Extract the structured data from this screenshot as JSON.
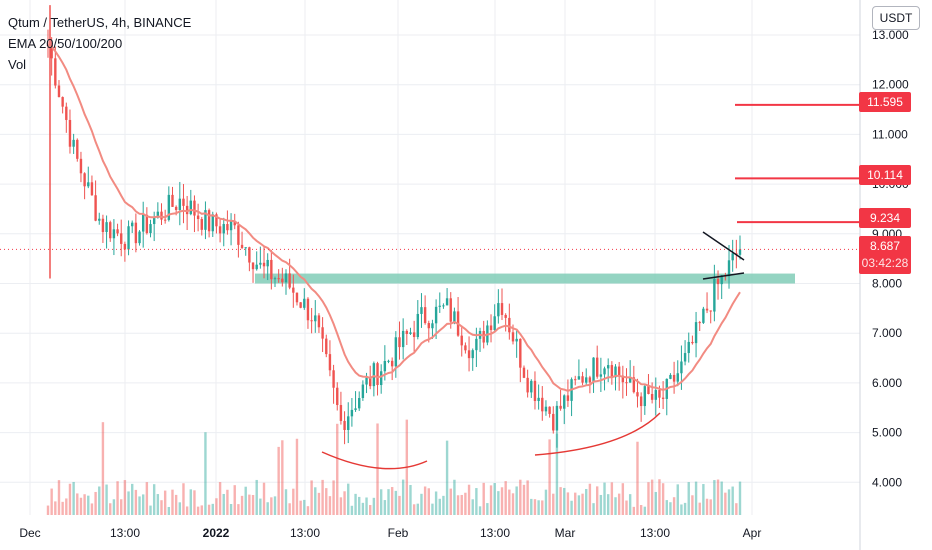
{
  "legend": {
    "symbol": "Qtum / TetherUS, 4h, BINANCE",
    "indicators": "EMA 20/50/100/200",
    "volume": "Vol"
  },
  "currency_button": "USDT",
  "price_tags": [
    {
      "label": "11.595",
      "value": 11.595
    },
    {
      "label": "10.114",
      "value": 10.114
    },
    {
      "label": "9.234",
      "value": 9.234
    }
  ],
  "current": {
    "price": "8.687",
    "value": 8.687,
    "countdown": "03:42:28"
  },
  "colors": {
    "up": "#26a69a",
    "down": "#ef5350",
    "ema": "#f28b82",
    "accent": "#f23645",
    "zone": "#81cdb7"
  },
  "chart_data": {
    "type": "candlestick",
    "title": "Qtum / TetherUS, 4h, BINANCE",
    "ylim": [
      3.4,
      13.6
    ],
    "y_ticks": [
      "4.000",
      "5.000",
      "6.000",
      "7.000",
      "8.000",
      "9.000",
      "10.000",
      "11.000",
      "12.000",
      "13.000"
    ],
    "x_ticks": [
      "Dec",
      "13:00",
      "2022",
      "13:00",
      "Feb",
      "13:00",
      "Mar",
      "13:00",
      "Apr"
    ],
    "price_path": [
      {
        "date": "Dec",
        "price": 12.8
      },
      {
        "date": "",
        "price": 10.6
      },
      {
        "date": "",
        "price": 9.2
      },
      {
        "date": "",
        "price": 8.9
      },
      {
        "date": "13:00",
        "price": 9.3
      },
      {
        "date": "",
        "price": 9.7
      },
      {
        "date": "2022",
        "price": 9.2
      },
      {
        "date": "",
        "price": 9.1
      },
      {
        "date": "",
        "price": 8.3
      },
      {
        "date": "13:00",
        "price": 8.0
      },
      {
        "date": "",
        "price": 7.3
      },
      {
        "date": "",
        "price": 5.2
      },
      {
        "date": "",
        "price": 6.0
      },
      {
        "date": "Feb",
        "price": 6.6
      },
      {
        "date": "",
        "price": 7.3
      },
      {
        "date": "",
        "price": 7.5
      },
      {
        "date": "",
        "price": 6.6
      },
      {
        "date": "13:00",
        "price": 7.7
      },
      {
        "date": "",
        "price": 6.1
      },
      {
        "date": "",
        "price": 5.3
      },
      {
        "date": "Mar",
        "price": 6.1
      },
      {
        "date": "",
        "price": 6.5
      },
      {
        "date": "",
        "price": 5.8
      },
      {
        "date": "13:00",
        "price": 5.6
      },
      {
        "date": "",
        "price": 6.5
      },
      {
        "date": "",
        "price": 7.8
      },
      {
        "date": "",
        "price": 8.7
      }
    ],
    "support_zone": [
      8.0,
      8.2
    ],
    "horizontal_levels": [
      11.595,
      10.114,
      9.234
    ],
    "last_price": 8.687,
    "series": [
      {
        "name": "EMA 20/50/100/200"
      },
      {
        "name": "Vol"
      }
    ],
    "annotations": [
      "rounded bottom arc (Jan–Feb)",
      "rounded bottom arc (Feb–Mar)",
      "symmetrical triangle near 8.7"
    ]
  }
}
